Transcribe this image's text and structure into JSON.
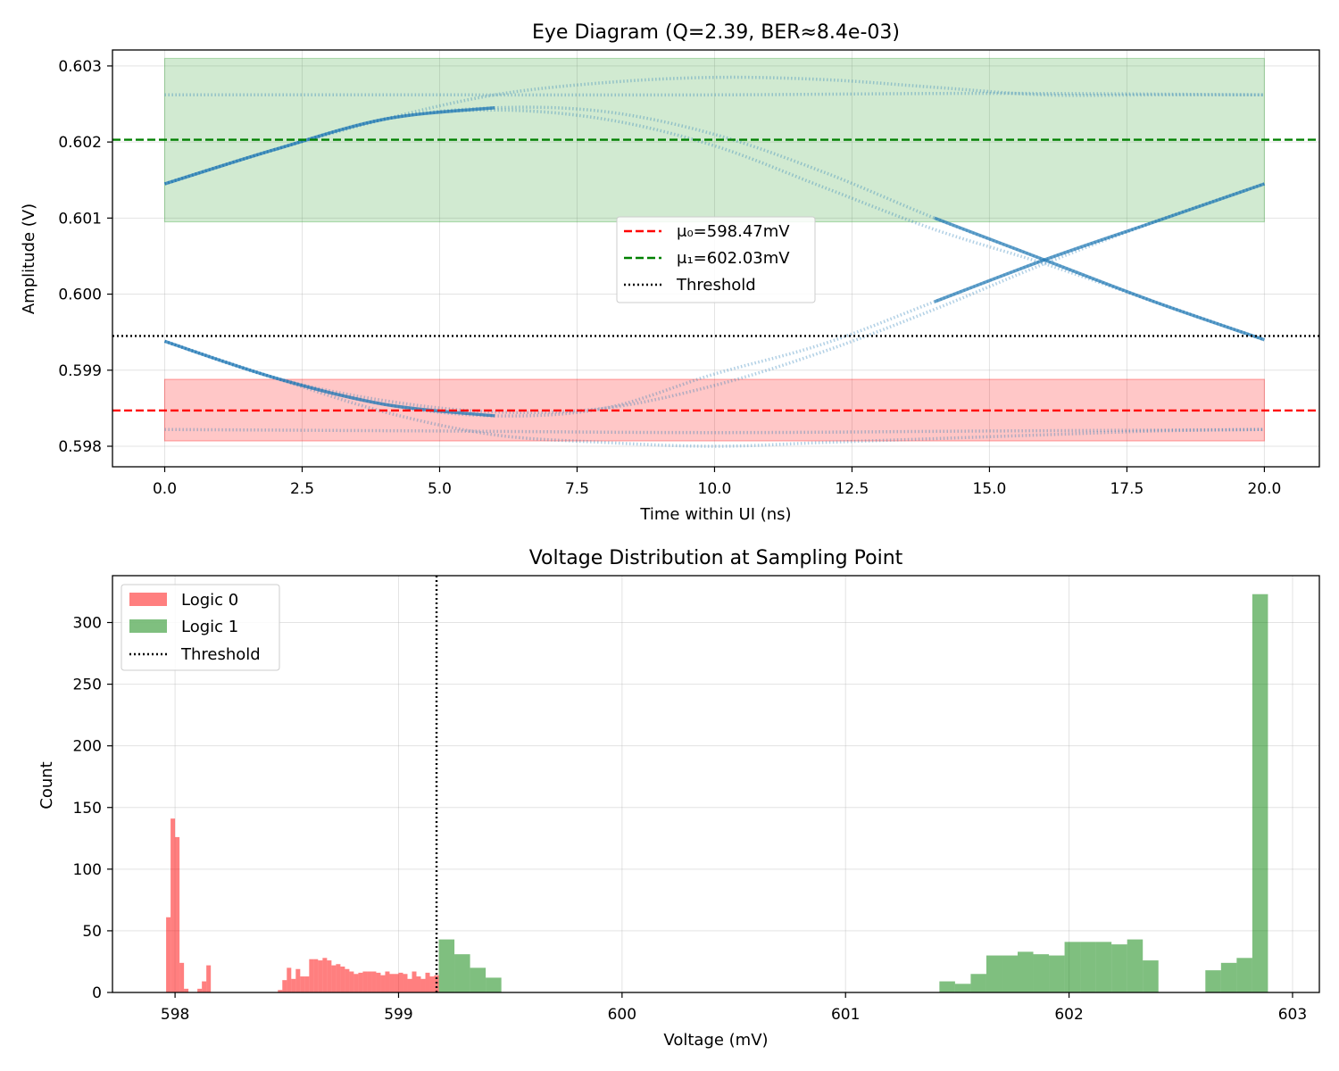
{
  "chart_data": [
    {
      "type": "scatter",
      "title": "Eye Diagram (Q=2.39, BER≈8.4e-03)",
      "xlabel": "Time within UI (ns)",
      "ylabel": "Amplitude (V)",
      "xlim": [
        -0.95,
        21.0
      ],
      "ylim": [
        0.59773,
        0.60321
      ],
      "xticks": [
        0.0,
        2.5,
        5.0,
        7.5,
        10.0,
        12.5,
        15.0,
        17.5,
        20.0
      ],
      "xtick_labels": [
        "0.0",
        "2.5",
        "5.0",
        "7.5",
        "10.0",
        "12.5",
        "15.0",
        "17.5",
        "20.0"
      ],
      "yticks": [
        0.598,
        0.599,
        0.6,
        0.601,
        0.602,
        0.603
      ],
      "ytick_labels": [
        "0.598",
        "0.599",
        "0.600",
        "0.601",
        "0.602",
        "0.603"
      ],
      "grid": true,
      "legend_position": "center",
      "bands": [
        {
          "name": "logic-1-band",
          "y0": 0.60095,
          "y1": 0.6031,
          "x0": 0,
          "x1": 20,
          "color": "#2ca02c"
        },
        {
          "name": "logic-0-band",
          "y0": 0.59807,
          "y1": 0.59888,
          "x0": 0,
          "x1": 20,
          "color": "#ff0000"
        }
      ],
      "hlines": [
        {
          "label": "μ₀=598.47mV",
          "y": 0.59847,
          "color": "#ff0000",
          "style": "dashed"
        },
        {
          "label": "μ₁=602.03mV",
          "y": 0.60203,
          "color": "#008000",
          "style": "dashed"
        },
        {
          "label": "Threshold",
          "y": 0.59945,
          "color": "#000000",
          "style": "dotted"
        }
      ],
      "traces": [
        {
          "name": "rise-0-1",
          "x": [
            0,
            2,
            4,
            6,
            8,
            10,
            12,
            14,
            16,
            18,
            20
          ],
          "y": [
            0.59938,
            0.5989,
            0.59855,
            0.5984,
            0.5985,
            0.59895,
            0.59935,
            0.5999,
            0.60045,
            0.60095,
            0.60145
          ]
        },
        {
          "name": "rise-0-1-late",
          "x": [
            0,
            2,
            4,
            6,
            8,
            10,
            12,
            14,
            16,
            18,
            20
          ],
          "y": [
            0.59938,
            0.5989,
            0.5986,
            0.59845,
            0.5985,
            0.5988,
            0.59925,
            0.5998,
            0.6004,
            0.60095,
            0.60145
          ]
        },
        {
          "name": "fall-1-0",
          "x": [
            0,
            2,
            4,
            6,
            8,
            10,
            12,
            14,
            16,
            18,
            20
          ],
          "y": [
            0.60145,
            0.6019,
            0.6023,
            0.60245,
            0.6024,
            0.6021,
            0.6016,
            0.601,
            0.60045,
            0.5999,
            0.5994
          ]
        },
        {
          "name": "fall-1-0-late",
          "x": [
            0,
            2,
            4,
            6,
            8,
            10,
            12,
            14,
            16,
            18,
            20
          ],
          "y": [
            0.60145,
            0.6019,
            0.6023,
            0.60242,
            0.6023,
            0.60195,
            0.6014,
            0.60085,
            0.6004,
            0.5999,
            0.5994
          ]
        },
        {
          "name": "stay-1-arc",
          "x": [
            0,
            2,
            4,
            6,
            8,
            10,
            12,
            14,
            16,
            18,
            20
          ],
          "y": [
            0.60145,
            0.6019,
            0.6023,
            0.60262,
            0.60278,
            0.60285,
            0.60282,
            0.60272,
            0.60262,
            0.60262,
            0.60262
          ]
        },
        {
          "name": "stay-0-arc",
          "x": [
            0,
            2,
            4,
            6,
            8,
            10,
            12,
            14,
            16,
            18,
            20
          ],
          "y": [
            0.59938,
            0.5989,
            0.59845,
            0.59815,
            0.59805,
            0.598,
            0.59805,
            0.5981,
            0.59815,
            0.5982,
            0.59822
          ]
        },
        {
          "name": "stay-1-flat",
          "x": [
            0,
            5,
            10,
            15,
            20
          ],
          "y": [
            0.60262,
            0.60262,
            0.60262,
            0.60264,
            0.60262
          ]
        },
        {
          "name": "stay-0-flat",
          "x": [
            0,
            5,
            10,
            15,
            20
          ],
          "y": [
            0.59822,
            0.5982,
            0.59818,
            0.5982,
            0.59822
          ]
        }
      ],
      "legend": [
        "μ₀=598.47mV",
        "μ₁=602.03mV",
        "Threshold"
      ]
    },
    {
      "type": "bar",
      "title": "Voltage Distribution at Sampling Point",
      "xlabel": "Voltage (mV)",
      "ylabel": "Count",
      "xlim": [
        597.72,
        603.12
      ],
      "ylim": [
        0,
        338
      ],
      "xticks": [
        598,
        599,
        600,
        601,
        602,
        603
      ],
      "xtick_labels": [
        "598",
        "599",
        "600",
        "601",
        "602",
        "603"
      ],
      "yticks": [
        0,
        50,
        100,
        150,
        200,
        250,
        300
      ],
      "ytick_labels": [
        "0",
        "50",
        "100",
        "150",
        "200",
        "250",
        "300"
      ],
      "grid": true,
      "legend_position": "top-left",
      "threshold": 599.17,
      "series": [
        {
          "name": "Logic 0",
          "color": "#ff0000",
          "alpha": 0.5,
          "bin_edges": [
            597.96,
            597.98,
            598.0,
            598.02,
            598.04,
            598.06,
            598.08,
            598.1,
            598.12,
            598.14,
            598.16,
            598.18,
            598.2,
            598.22,
            598.24,
            598.26,
            598.28,
            598.3,
            598.32,
            598.34,
            598.36,
            598.38,
            598.4,
            598.42,
            598.44,
            598.46,
            598.48,
            598.5,
            598.52,
            598.54,
            598.56,
            598.58,
            598.6,
            598.62,
            598.64,
            598.66,
            598.68,
            598.7,
            598.72,
            598.74,
            598.76,
            598.78,
            598.8,
            598.82,
            598.84,
            598.86,
            598.88,
            598.9,
            598.92,
            598.94,
            598.96,
            598.98,
            599.0,
            599.02,
            599.04,
            599.06,
            599.08,
            599.1,
            599.12,
            599.14,
            599.16,
            599.18
          ],
          "counts": [
            61,
            141,
            126,
            24,
            3,
            0,
            0,
            3,
            9,
            22,
            0,
            0,
            0,
            0,
            0,
            0,
            0,
            0,
            0,
            0,
            0,
            0,
            0,
            0,
            0,
            2,
            10,
            20,
            11,
            19,
            13,
            13,
            27,
            27,
            26,
            28,
            26,
            22,
            23,
            21,
            19,
            17,
            15,
            16,
            17,
            17,
            17,
            16,
            14,
            17,
            15,
            15,
            16,
            15,
            11,
            17,
            13,
            11,
            16,
            13,
            14
          ]
        },
        {
          "name": "Logic 1",
          "color": "#008000",
          "alpha": 0.5,
          "bin_edges": [
            599.18,
            599.25,
            599.32,
            599.39,
            599.46,
            599.53,
            599.6,
            599.67,
            599.74,
            599.81,
            599.88,
            599.95,
            600.02,
            600.09,
            600.16,
            600.23,
            600.3,
            600.37,
            600.44,
            600.51,
            600.58,
            600.65,
            600.72,
            600.79,
            600.86,
            600.93,
            601.0,
            601.07,
            601.14,
            601.21,
            601.28,
            601.35,
            601.42,
            601.49,
            601.56,
            601.63,
            601.7,
            601.77,
            601.84,
            601.91,
            601.98,
            602.05,
            602.12,
            602.19,
            602.26,
            602.33,
            602.4,
            602.47,
            602.54,
            602.61,
            602.68,
            602.75,
            602.82,
            602.89
          ],
          "counts": [
            43,
            31,
            20,
            12,
            0,
            0,
            0,
            0,
            0,
            0,
            0,
            0,
            0,
            0,
            0,
            0,
            0,
            0,
            0,
            0,
            0,
            0,
            0,
            0,
            0,
            0,
            0,
            0,
            0,
            0,
            0,
            0,
            9,
            7,
            15,
            30,
            30,
            33,
            31,
            30,
            41,
            41,
            41,
            39,
            43,
            26,
            0,
            0,
            0,
            18,
            24,
            28,
            323
          ]
        }
      ],
      "legend": [
        "Logic 0",
        "Logic 1",
        "Threshold"
      ]
    }
  ]
}
